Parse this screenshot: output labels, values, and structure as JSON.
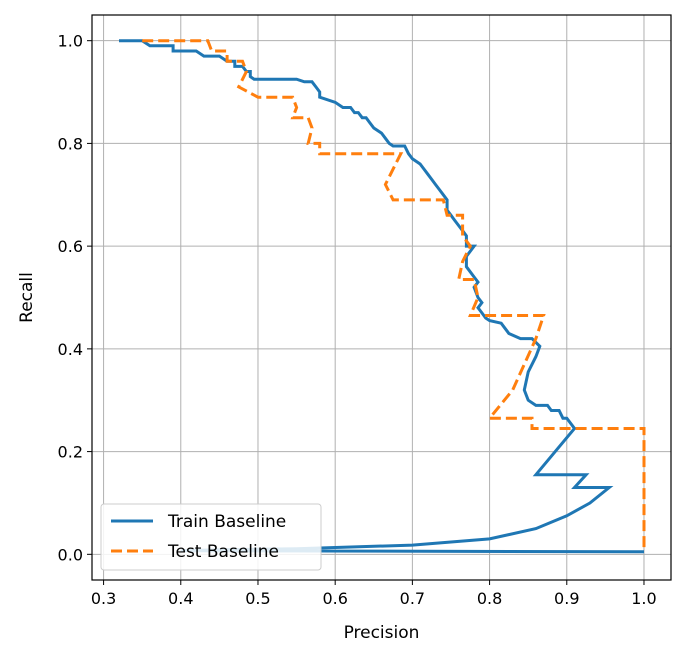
{
  "chart_data": {
    "type": "line",
    "xlabel": "Precision",
    "ylabel": "Recall",
    "xlim": [
      0.285,
      1.035
    ],
    "ylim": [
      -0.05,
      1.05
    ],
    "xticks": [
      0.3,
      0.4,
      0.5,
      0.6,
      0.7,
      0.8,
      0.9,
      1.0
    ],
    "yticks": [
      0.0,
      0.2,
      0.4,
      0.6,
      0.8,
      1.0
    ],
    "xtick_labels": [
      "0.3",
      "0.4",
      "0.5",
      "0.6",
      "0.7",
      "0.8",
      "0.9",
      "1.0"
    ],
    "ytick_labels": [
      "0.0",
      "0.2",
      "0.4",
      "0.6",
      "0.8",
      "1.0"
    ],
    "grid": true,
    "legend_position": "lower-left",
    "series": [
      {
        "name": "Train Baseline",
        "color": "#1f77b4",
        "style": "solid",
        "points": [
          [
            0.32,
            1.0
          ],
          [
            0.35,
            1.0
          ],
          [
            0.36,
            0.99
          ],
          [
            0.39,
            0.99
          ],
          [
            0.39,
            0.98
          ],
          [
            0.42,
            0.98
          ],
          [
            0.43,
            0.97
          ],
          [
            0.45,
            0.97
          ],
          [
            0.46,
            0.96
          ],
          [
            0.47,
            0.96
          ],
          [
            0.47,
            0.95
          ],
          [
            0.48,
            0.95
          ],
          [
            0.485,
            0.94
          ],
          [
            0.49,
            0.94
          ],
          [
            0.49,
            0.93
          ],
          [
            0.495,
            0.925
          ],
          [
            0.55,
            0.925
          ],
          [
            0.56,
            0.92
          ],
          [
            0.57,
            0.92
          ],
          [
            0.575,
            0.91
          ],
          [
            0.58,
            0.9
          ],
          [
            0.58,
            0.89
          ],
          [
            0.6,
            0.88
          ],
          [
            0.61,
            0.87
          ],
          [
            0.62,
            0.87
          ],
          [
            0.625,
            0.86
          ],
          [
            0.63,
            0.86
          ],
          [
            0.635,
            0.85
          ],
          [
            0.64,
            0.85
          ],
          [
            0.645,
            0.84
          ],
          [
            0.65,
            0.83
          ],
          [
            0.66,
            0.82
          ],
          [
            0.665,
            0.81
          ],
          [
            0.67,
            0.8
          ],
          [
            0.675,
            0.795
          ],
          [
            0.69,
            0.795
          ],
          [
            0.695,
            0.78
          ],
          [
            0.7,
            0.77
          ],
          [
            0.71,
            0.76
          ],
          [
            0.715,
            0.75
          ],
          [
            0.72,
            0.74
          ],
          [
            0.725,
            0.73
          ],
          [
            0.73,
            0.72
          ],
          [
            0.735,
            0.71
          ],
          [
            0.74,
            0.7
          ],
          [
            0.745,
            0.69
          ],
          [
            0.745,
            0.67
          ],
          [
            0.75,
            0.66
          ],
          [
            0.755,
            0.65
          ],
          [
            0.76,
            0.64
          ],
          [
            0.765,
            0.63
          ],
          [
            0.77,
            0.62
          ],
          [
            0.77,
            0.6
          ],
          [
            0.775,
            0.6
          ],
          [
            0.78,
            0.6
          ],
          [
            0.77,
            0.58
          ],
          [
            0.77,
            0.56
          ],
          [
            0.78,
            0.54
          ],
          [
            0.785,
            0.53
          ],
          [
            0.78,
            0.52
          ],
          [
            0.785,
            0.5
          ],
          [
            0.79,
            0.49
          ],
          [
            0.785,
            0.48
          ],
          [
            0.79,
            0.47
          ],
          [
            0.795,
            0.46
          ],
          [
            0.8,
            0.455
          ],
          [
            0.815,
            0.45
          ],
          [
            0.82,
            0.44
          ],
          [
            0.825,
            0.43
          ],
          [
            0.84,
            0.42
          ],
          [
            0.855,
            0.42
          ],
          [
            0.865,
            0.405
          ],
          [
            0.86,
            0.385
          ],
          [
            0.85,
            0.355
          ],
          [
            0.845,
            0.32
          ],
          [
            0.85,
            0.3
          ],
          [
            0.86,
            0.29
          ],
          [
            0.875,
            0.29
          ],
          [
            0.88,
            0.28
          ],
          [
            0.89,
            0.28
          ],
          [
            0.895,
            0.265
          ],
          [
            0.9,
            0.265
          ],
          [
            0.91,
            0.245
          ],
          [
            0.885,
            0.2
          ],
          [
            0.86,
            0.155
          ],
          [
            0.925,
            0.155
          ],
          [
            0.91,
            0.13
          ],
          [
            0.955,
            0.13
          ],
          [
            0.93,
            0.1
          ],
          [
            0.9,
            0.075
          ],
          [
            0.86,
            0.05
          ],
          [
            0.8,
            0.03
          ],
          [
            0.7,
            0.018
          ],
          [
            0.55,
            0.011
          ],
          [
            0.45,
            0.009
          ],
          [
            0.4,
            0.007
          ],
          [
            1.0,
            0.005
          ]
        ]
      },
      {
        "name": "Test Baseline",
        "color": "#ff7f0e",
        "style": "dashed",
        "points": [
          [
            0.35,
            1.0
          ],
          [
            0.435,
            1.0
          ],
          [
            0.44,
            0.98
          ],
          [
            0.46,
            0.98
          ],
          [
            0.46,
            0.96
          ],
          [
            0.48,
            0.96
          ],
          [
            0.485,
            0.94
          ],
          [
            0.475,
            0.91
          ],
          [
            0.5,
            0.89
          ],
          [
            0.545,
            0.89
          ],
          [
            0.55,
            0.87
          ],
          [
            0.545,
            0.85
          ],
          [
            0.565,
            0.85
          ],
          [
            0.57,
            0.83
          ],
          [
            0.565,
            0.8
          ],
          [
            0.58,
            0.8
          ],
          [
            0.58,
            0.78
          ],
          [
            0.685,
            0.78
          ],
          [
            0.675,
            0.75
          ],
          [
            0.665,
            0.72
          ],
          [
            0.675,
            0.69
          ],
          [
            0.74,
            0.69
          ],
          [
            0.745,
            0.66
          ],
          [
            0.765,
            0.66
          ],
          [
            0.765,
            0.62
          ],
          [
            0.775,
            0.6
          ],
          [
            0.765,
            0.57
          ],
          [
            0.76,
            0.535
          ],
          [
            0.78,
            0.535
          ],
          [
            0.785,
            0.5
          ],
          [
            0.775,
            0.465
          ],
          [
            0.87,
            0.465
          ],
          [
            0.86,
            0.42
          ],
          [
            0.845,
            0.37
          ],
          [
            0.83,
            0.32
          ],
          [
            0.8,
            0.265
          ],
          [
            0.855,
            0.265
          ],
          [
            0.855,
            0.245
          ],
          [
            1.0,
            0.245
          ],
          [
            1.0,
            0.005
          ]
        ]
      }
    ]
  }
}
